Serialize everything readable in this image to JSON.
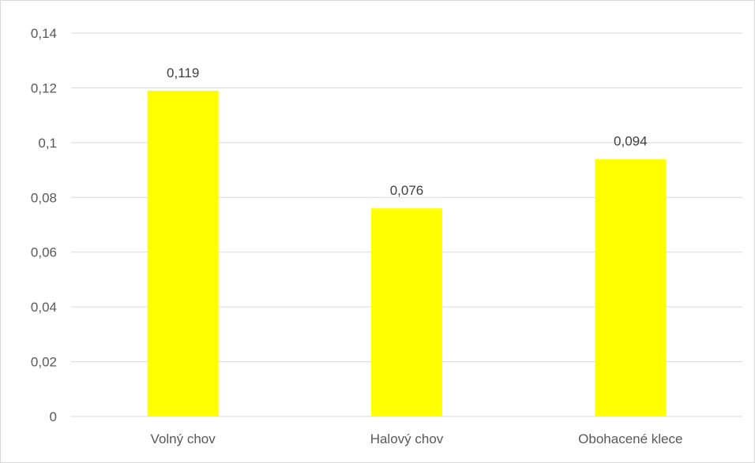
{
  "chart_data": {
    "type": "bar",
    "categories": [
      "Volný chov",
      "Halový chov",
      "Obohacené klece"
    ],
    "values": [
      0.119,
      0.076,
      0.094
    ],
    "data_labels": [
      "0,119",
      "0,076",
      "0,094"
    ],
    "yticks": [
      0,
      0.02,
      0.04,
      0.06,
      0.08,
      0.1,
      0.12,
      0.14
    ],
    "ytick_labels": [
      "0",
      "0,02",
      "0,04",
      "0,06",
      "0,08",
      "0,1",
      "0,12",
      "0,14"
    ],
    "ylim": [
      0,
      0.14
    ],
    "grid": true,
    "legend": "none",
    "title": "",
    "xlabel": "",
    "ylabel": "",
    "colors": {
      "bar": "#FFFF00",
      "grid": "#d9d9d9",
      "text": "#595959",
      "label": "#404040"
    }
  }
}
